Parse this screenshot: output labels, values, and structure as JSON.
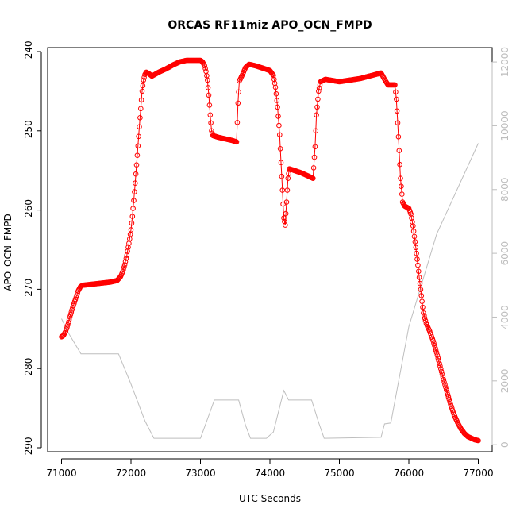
{
  "chart_data": {
    "type": "scatter",
    "title": "ORCAS RF11miz APO_OCN_FMPD",
    "xlabel": "UTC Seconds",
    "ylabel": "APO_OCN_FMPD",
    "xlim": [
      70800,
      77200
    ],
    "ylim": [
      -290.5,
      -239.5
    ],
    "y2lim": [
      -220,
      12450
    ],
    "x_ticks": [
      71000,
      72000,
      73000,
      74000,
      75000,
      76000,
      77000
    ],
    "y_ticks": [
      -240,
      -250,
      -260,
      -270,
      -280,
      -290
    ],
    "y2_ticks": [
      0,
      2000,
      4000,
      6000,
      8000,
      10000,
      12000
    ],
    "grid": false,
    "colors": {
      "series": "#ff0000",
      "secondary": "#bebebe",
      "axis": "#000000"
    },
    "series": [
      {
        "marker": "open-circle-line",
        "points": [
          [
            71000,
            -276.0
          ],
          [
            71030,
            -275.8
          ],
          [
            71060,
            -275.3
          ],
          [
            71090,
            -274.5
          ],
          [
            71120,
            -273.5
          ],
          [
            71150,
            -272.6
          ],
          [
            71180,
            -271.8
          ],
          [
            71210,
            -271.0
          ],
          [
            71240,
            -270.2
          ],
          [
            71270,
            -269.7
          ],
          [
            71300,
            -269.5
          ],
          [
            71500,
            -269.3
          ],
          [
            71700,
            -269.1
          ],
          [
            71800,
            -268.9
          ],
          [
            71850,
            -268.4
          ],
          [
            71880,
            -267.8
          ],
          [
            71910,
            -266.9
          ],
          [
            71940,
            -265.7
          ],
          [
            71970,
            -264.2
          ],
          [
            72000,
            -262.5
          ],
          [
            72020,
            -260.8
          ],
          [
            72040,
            -258.8
          ],
          [
            72060,
            -256.6
          ],
          [
            72080,
            -254.3
          ],
          [
            72100,
            -251.9
          ],
          [
            72120,
            -249.5
          ],
          [
            72140,
            -247.2
          ],
          [
            72160,
            -245.0
          ],
          [
            72180,
            -243.6
          ],
          [
            72200,
            -242.9
          ],
          [
            72220,
            -242.6
          ],
          [
            72260,
            -242.8
          ],
          [
            72300,
            -243.1
          ],
          [
            72400,
            -242.6
          ],
          [
            72500,
            -242.2
          ],
          [
            72600,
            -241.7
          ],
          [
            72700,
            -241.3
          ],
          [
            72800,
            -241.1
          ],
          [
            72900,
            -241.1
          ],
          [
            73000,
            -241.1
          ],
          [
            73030,
            -241.3
          ],
          [
            73060,
            -241.8
          ],
          [
            73080,
            -242.5
          ],
          [
            73100,
            -243.6
          ],
          [
            73120,
            -245.5
          ],
          [
            73140,
            -248.0
          ],
          [
            73160,
            -250.0
          ],
          [
            73180,
            -250.6
          ],
          [
            73250,
            -250.8
          ],
          [
            73350,
            -251.0
          ],
          [
            73450,
            -251.2
          ],
          [
            73520,
            -251.4
          ],
          [
            73540,
            -246.5
          ],
          [
            73560,
            -243.7
          ],
          [
            73600,
            -243.0
          ],
          [
            73650,
            -242.0
          ],
          [
            73700,
            -241.6
          ],
          [
            73800,
            -241.8
          ],
          [
            73900,
            -242.1
          ],
          [
            74000,
            -242.4
          ],
          [
            74050,
            -243.0
          ],
          [
            74080,
            -244.5
          ],
          [
            74110,
            -247.0
          ],
          [
            74140,
            -250.5
          ],
          [
            74160,
            -254.0
          ],
          [
            74180,
            -257.5
          ],
          [
            74200,
            -261.0
          ],
          [
            74220,
            -261.9
          ],
          [
            74240,
            -259.0
          ],
          [
            74260,
            -256.0
          ],
          [
            74280,
            -254.8
          ],
          [
            74350,
            -255.0
          ],
          [
            74450,
            -255.3
          ],
          [
            74550,
            -255.7
          ],
          [
            74620,
            -256.0
          ],
          [
            74650,
            -252.0
          ],
          [
            74670,
            -248.0
          ],
          [
            74700,
            -245.0
          ],
          [
            74730,
            -243.8
          ],
          [
            74800,
            -243.5
          ],
          [
            75000,
            -243.8
          ],
          [
            75300,
            -243.4
          ],
          [
            75600,
            -242.7
          ],
          [
            75650,
            -243.5
          ],
          [
            75700,
            -244.2
          ],
          [
            75800,
            -244.2
          ],
          [
            75820,
            -246.0
          ],
          [
            75840,
            -249.0
          ],
          [
            75860,
            -252.5
          ],
          [
            75880,
            -256.0
          ],
          [
            75910,
            -259.0
          ],
          [
            75940,
            -259.5
          ],
          [
            76000,
            -259.8
          ],
          [
            76030,
            -260.5
          ],
          [
            76060,
            -262.0
          ],
          [
            76090,
            -264.0
          ],
          [
            76120,
            -266.2
          ],
          [
            76150,
            -268.5
          ],
          [
            76180,
            -270.8
          ],
          [
            76210,
            -273.0
          ],
          [
            76250,
            -274.3
          ],
          [
            76300,
            -275.3
          ],
          [
            76350,
            -276.5
          ],
          [
            76400,
            -278.0
          ],
          [
            76450,
            -279.7
          ],
          [
            76500,
            -281.4
          ],
          [
            76550,
            -283.0
          ],
          [
            76600,
            -284.5
          ],
          [
            76650,
            -285.8
          ],
          [
            76700,
            -286.8
          ],
          [
            76750,
            -287.6
          ],
          [
            76800,
            -288.2
          ],
          [
            76850,
            -288.6
          ],
          [
            76900,
            -288.8
          ],
          [
            76950,
            -289.0
          ],
          [
            77000,
            -289.1
          ]
        ]
      },
      {
        "axis": "right",
        "marker": "line",
        "points": [
          [
            71000,
            3950
          ],
          [
            71100,
            3500
          ],
          [
            71280,
            2850
          ],
          [
            71400,
            2850
          ],
          [
            71820,
            2850
          ],
          [
            72000,
            1900
          ],
          [
            72200,
            750
          ],
          [
            72330,
            200
          ],
          [
            73000,
            200
          ],
          [
            73100,
            800
          ],
          [
            73200,
            1400
          ],
          [
            73400,
            1400
          ],
          [
            73550,
            1400
          ],
          [
            73650,
            600
          ],
          [
            73720,
            200
          ],
          [
            73950,
            200
          ],
          [
            74050,
            400
          ],
          [
            74200,
            1700
          ],
          [
            74270,
            1400
          ],
          [
            74400,
            1400
          ],
          [
            74600,
            1400
          ],
          [
            74700,
            700
          ],
          [
            74780,
            200
          ],
          [
            75600,
            230
          ],
          [
            75650,
            650
          ],
          [
            75740,
            680
          ],
          [
            76000,
            3700
          ],
          [
            76400,
            6600
          ],
          [
            77000,
            9450
          ]
        ]
      }
    ]
  }
}
